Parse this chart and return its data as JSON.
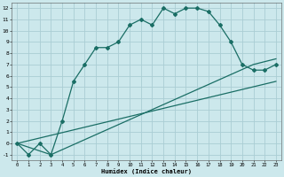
{
  "xlabel": "Humidex (Indice chaleur)",
  "background_color": "#cce8ec",
  "grid_color": "#aacdd4",
  "line_color": "#1a6e65",
  "xlim": [
    -0.5,
    23.5
  ],
  "ylim": [
    -1.5,
    12.5
  ],
  "yticks": [
    -1,
    0,
    1,
    2,
    3,
    4,
    5,
    6,
    7,
    8,
    9,
    10,
    11,
    12
  ],
  "xticks": [
    0,
    1,
    2,
    3,
    4,
    5,
    6,
    7,
    8,
    9,
    10,
    11,
    12,
    13,
    14,
    15,
    16,
    17,
    18,
    19,
    20,
    21,
    22,
    23
  ],
  "line1_x": [
    0,
    1,
    2,
    3,
    4,
    5,
    6,
    7,
    8,
    9,
    10,
    11,
    12,
    13,
    14,
    15,
    16,
    17,
    18,
    19,
    20,
    21,
    22,
    23
  ],
  "line1_y": [
    0,
    -1,
    0,
    -1,
    2,
    5.5,
    7,
    8.5,
    8.5,
    9,
    10.5,
    11,
    10.5,
    12,
    11.5,
    12,
    12,
    11.7,
    10.5,
    9,
    7,
    6.5,
    6.5,
    7
  ],
  "line2_x": [
    0,
    3,
    21,
    23
  ],
  "line2_y": [
    0,
    -1,
    7,
    7.5
  ],
  "line3_x": [
    0,
    23
  ],
  "line3_y": [
    0,
    5.5
  ]
}
